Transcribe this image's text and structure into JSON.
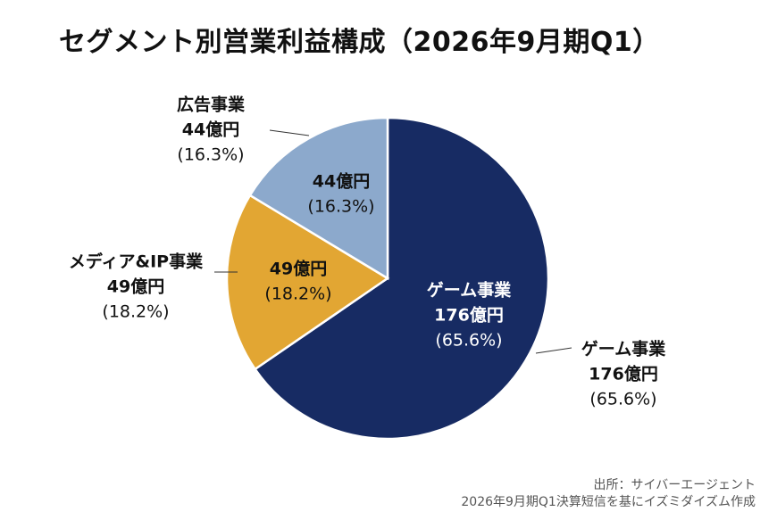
{
  "title": "セグメント別営業利益構成（2026年9月期Q1）",
  "chart_data": {
    "type": "pie",
    "unit": "億円",
    "series": [
      {
        "name": "ゲーム事業",
        "value": 176,
        "percent": "65.6%",
        "value_label": "176億円",
        "percent_label": "(65.6%)",
        "color": "#172b63"
      },
      {
        "name": "メディア&IP事業",
        "value": 49,
        "percent": "18.2%",
        "value_label": "49億円",
        "percent_label": "(18.2%)",
        "color": "#e2a633"
      },
      {
        "name": "広告事業",
        "value": 44,
        "percent": "16.3%",
        "value_label": "44億円",
        "percent_label": "(16.3%)",
        "color": "#8ca9cc"
      }
    ]
  },
  "source": {
    "line1": "出所：サイバーエージェント",
    "line2": "2026年9月期Q1決算短信を基にイズミダイズム作成"
  }
}
